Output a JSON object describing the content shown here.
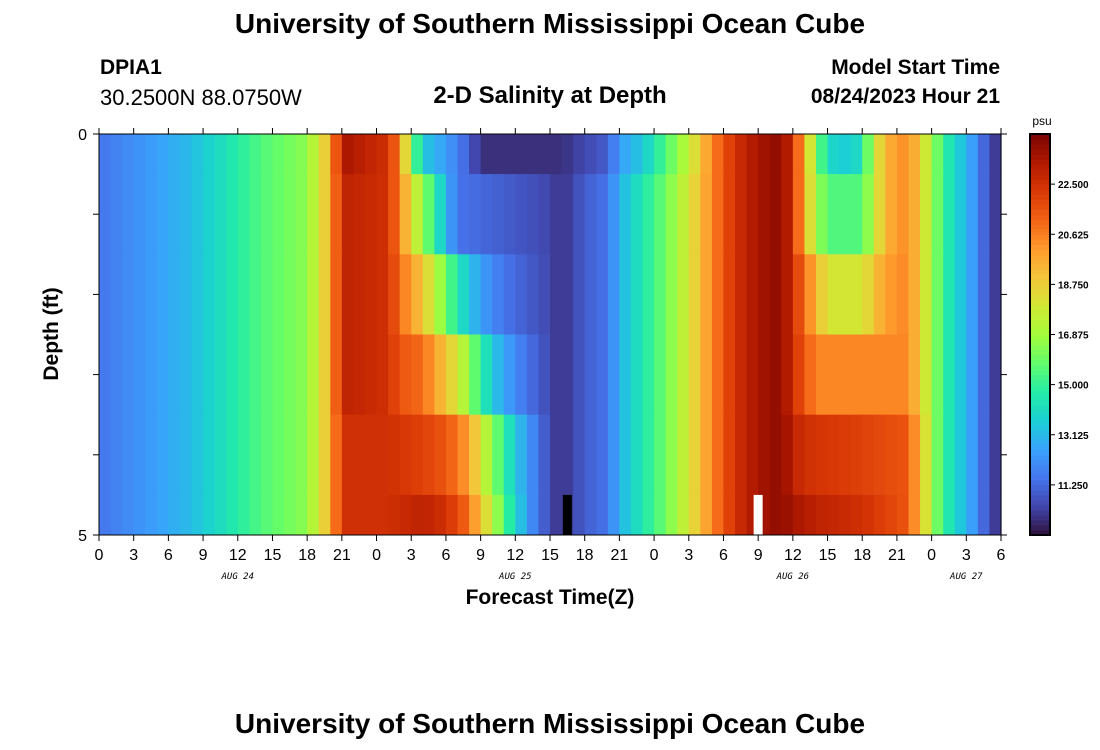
{
  "page": {
    "title": "University of Southern Mississippi Ocean Cube",
    "station_id": "DPIA1",
    "coordinates": "30.2500N  88.0750W",
    "subtitle": "2-D Salinity at Depth",
    "model_start_label": "Model Start Time",
    "model_start_value": "08/24/2023 Hour 21",
    "footer_title": "University of Southern Mississippi Ocean Cube"
  },
  "chart_data": {
    "type": "heatmap",
    "xlabel": "Forecast Time(Z)",
    "ylabel": "Depth (ft)",
    "x_tick_labels": [
      "0",
      "3",
      "6",
      "9",
      "12",
      "15",
      "18",
      "21",
      "0",
      "3",
      "6",
      "9",
      "12",
      "15",
      "18",
      "21",
      "0",
      "3",
      "6",
      "9",
      "12",
      "15",
      "18",
      "21",
      "0",
      "3",
      "6"
    ],
    "date_labels": [
      {
        "label": "AUG 24",
        "hour_index": 12
      },
      {
        "label": "AUG 25",
        "hour_index": 36
      },
      {
        "label": "AUG 26",
        "hour_index": 60
      },
      {
        "label": "AUG 27",
        "hour_index": 75
      }
    ],
    "y_range": [
      0,
      5
    ],
    "y_tick_labels": [
      "0",
      "5"
    ],
    "x_range_hours": [
      0,
      78
    ],
    "colorbar": {
      "unit": "psu",
      "min": 9.375,
      "max": 24.375,
      "ticks": [
        "11.250",
        "13.125",
        "15.000",
        "16.875",
        "18.750",
        "20.625",
        "22.500"
      ],
      "tick_values": [
        11.25,
        13.125,
        15.0,
        16.875,
        18.75,
        20.625,
        22.5
      ]
    },
    "columns_per_row": 78,
    "rows": [
      {
        "depth_top": 0.0,
        "depth_bottom": 0.5,
        "breakpoints": [
          [
            0,
            11.5
          ],
          [
            8,
            13.2
          ],
          [
            14,
            15.5
          ],
          [
            18,
            16.5
          ],
          [
            20,
            19.5
          ],
          [
            21,
            23.5
          ],
          [
            25,
            22.5
          ],
          [
            26,
            20.5
          ],
          [
            27,
            16.5
          ],
          [
            28,
            13.5
          ],
          [
            30,
            12.5
          ],
          [
            32,
            11.0
          ],
          [
            33,
            10.0
          ],
          [
            40,
            10.0
          ],
          [
            44,
            11.0
          ],
          [
            45,
            12.5
          ],
          [
            47,
            13.5
          ],
          [
            49,
            15.5
          ],
          [
            51,
            17.5
          ],
          [
            53,
            20.5
          ],
          [
            55,
            22.5
          ],
          [
            57,
            23.5
          ],
          [
            59,
            24.0
          ],
          [
            60,
            22.5
          ],
          [
            61,
            19.5
          ],
          [
            62,
            16.5
          ],
          [
            63,
            14.0
          ],
          [
            65,
            13.5
          ],
          [
            66,
            14.5
          ],
          [
            67,
            17.5
          ],
          [
            68,
            19.5
          ],
          [
            70,
            20.5
          ],
          [
            72,
            17.0
          ],
          [
            73,
            15.0
          ],
          [
            75,
            13.0
          ],
          [
            76,
            12.0
          ],
          [
            77,
            10.5
          ],
          [
            78,
            10.0
          ]
        ]
      },
      {
        "depth_top": 0.5,
        "depth_bottom": 1.5,
        "breakpoints": [
          [
            0,
            11.5
          ],
          [
            8,
            13.2
          ],
          [
            14,
            15.5
          ],
          [
            18,
            16.5
          ],
          [
            20,
            19.5
          ],
          [
            21,
            23.0
          ],
          [
            25,
            22.5
          ],
          [
            26,
            20.5
          ],
          [
            27,
            18.5
          ],
          [
            28,
            16.5
          ],
          [
            29,
            15.0
          ],
          [
            30,
            13.0
          ],
          [
            31,
            11.5
          ],
          [
            35,
            11.0
          ],
          [
            39,
            10.5
          ],
          [
            40,
            10.0
          ],
          [
            42,
            11.0
          ],
          [
            44,
            11.5
          ],
          [
            45,
            13.0
          ],
          [
            47,
            14.5
          ],
          [
            49,
            16.0
          ],
          [
            51,
            18.0
          ],
          [
            53,
            20.5
          ],
          [
            55,
            22.5
          ],
          [
            57,
            23.5
          ],
          [
            59,
            24.0
          ],
          [
            60,
            22.5
          ],
          [
            61,
            19.5
          ],
          [
            62,
            17.0
          ],
          [
            63,
            15.5
          ],
          [
            66,
            15.5
          ],
          [
            67,
            17.5
          ],
          [
            68,
            19.5
          ],
          [
            70,
            20.5
          ],
          [
            72,
            17.0
          ],
          [
            73,
            15.0
          ],
          [
            75,
            13.0
          ],
          [
            76,
            12.0
          ],
          [
            77,
            10.5
          ],
          [
            78,
            10.0
          ]
        ]
      },
      {
        "depth_top": 1.5,
        "depth_bottom": 2.5,
        "breakpoints": [
          [
            0,
            11.5
          ],
          [
            8,
            13.2
          ],
          [
            14,
            15.5
          ],
          [
            18,
            16.5
          ],
          [
            20,
            19.5
          ],
          [
            21,
            23.0
          ],
          [
            25,
            22.5
          ],
          [
            26,
            21.0
          ],
          [
            27,
            20.0
          ],
          [
            28,
            19.0
          ],
          [
            29,
            17.5
          ],
          [
            30,
            16.0
          ],
          [
            31,
            14.5
          ],
          [
            32,
            13.5
          ],
          [
            33,
            12.5
          ],
          [
            35,
            11.5
          ],
          [
            39,
            10.5
          ],
          [
            40,
            10.0
          ],
          [
            42,
            11.0
          ],
          [
            44,
            11.5
          ],
          [
            45,
            13.0
          ],
          [
            47,
            14.5
          ],
          [
            49,
            16.0
          ],
          [
            51,
            18.0
          ],
          [
            53,
            20.5
          ],
          [
            55,
            22.5
          ],
          [
            57,
            23.5
          ],
          [
            59,
            24.0
          ],
          [
            60,
            22.5
          ],
          [
            61,
            21.0
          ],
          [
            62,
            19.5
          ],
          [
            63,
            18.0
          ],
          [
            66,
            18.0
          ],
          [
            67,
            19.0
          ],
          [
            68,
            20.0
          ],
          [
            70,
            20.5
          ],
          [
            72,
            17.0
          ],
          [
            73,
            15.0
          ],
          [
            75,
            13.0
          ],
          [
            76,
            12.0
          ],
          [
            77,
            10.5
          ],
          [
            78,
            10.0
          ]
        ]
      },
      {
        "depth_top": 2.5,
        "depth_bottom": 3.5,
        "breakpoints": [
          [
            0,
            11.5
          ],
          [
            8,
            13.2
          ],
          [
            14,
            15.5
          ],
          [
            18,
            16.5
          ],
          [
            20,
            19.5
          ],
          [
            21,
            23.0
          ],
          [
            25,
            22.5
          ],
          [
            26,
            21.5
          ],
          [
            28,
            21.0
          ],
          [
            29,
            20.0
          ],
          [
            30,
            19.0
          ],
          [
            31,
            18.0
          ],
          [
            32,
            16.5
          ],
          [
            33,
            15.0
          ],
          [
            34,
            13.5
          ],
          [
            36,
            12.0
          ],
          [
            39,
            10.5
          ],
          [
            40,
            10.0
          ],
          [
            42,
            11.0
          ],
          [
            44,
            11.5
          ],
          [
            45,
            13.0
          ],
          [
            47,
            14.5
          ],
          [
            49,
            16.0
          ],
          [
            51,
            18.0
          ],
          [
            53,
            20.5
          ],
          [
            55,
            22.5
          ],
          [
            57,
            23.5
          ],
          [
            59,
            24.0
          ],
          [
            60,
            22.5
          ],
          [
            61,
            21.5
          ],
          [
            62,
            20.5
          ],
          [
            66,
            20.5
          ],
          [
            68,
            20.5
          ],
          [
            70,
            20.5
          ],
          [
            72,
            17.0
          ],
          [
            73,
            15.0
          ],
          [
            75,
            13.0
          ],
          [
            76,
            12.0
          ],
          [
            77,
            10.5
          ],
          [
            78,
            10.0
          ]
        ]
      },
      {
        "depth_top": 3.5,
        "depth_bottom": 4.5,
        "breakpoints": [
          [
            0,
            11.5
          ],
          [
            8,
            13.2
          ],
          [
            14,
            15.5
          ],
          [
            18,
            16.5
          ],
          [
            20,
            19.5
          ],
          [
            21,
            22.5
          ],
          [
            25,
            22.5
          ],
          [
            28,
            22.0
          ],
          [
            30,
            21.5
          ],
          [
            32,
            20.0
          ],
          [
            33,
            18.0
          ],
          [
            34,
            16.5
          ],
          [
            35,
            15.0
          ],
          [
            36,
            13.5
          ],
          [
            38,
            11.5
          ],
          [
            39,
            10.5
          ],
          [
            40,
            10.0
          ],
          [
            42,
            11.0
          ],
          [
            44,
            11.5
          ],
          [
            45,
            13.0
          ],
          [
            47,
            14.5
          ],
          [
            49,
            16.0
          ],
          [
            51,
            18.0
          ],
          [
            53,
            20.5
          ],
          [
            55,
            22.5
          ],
          [
            57,
            23.5
          ],
          [
            59,
            24.0
          ],
          [
            60,
            23.0
          ],
          [
            61,
            22.5
          ],
          [
            66,
            22.0
          ],
          [
            70,
            21.5
          ],
          [
            72,
            17.0
          ],
          [
            73,
            15.0
          ],
          [
            75,
            13.0
          ],
          [
            76,
            12.0
          ],
          [
            77,
            10.5
          ],
          [
            78,
            10.0
          ]
        ]
      },
      {
        "depth_top": 4.5,
        "depth_bottom": 5.0,
        "breakpoints": [
          [
            0,
            11.5
          ],
          [
            8,
            13.2
          ],
          [
            14,
            15.5
          ],
          [
            18,
            16.5
          ],
          [
            20,
            19.5
          ],
          [
            21,
            22.5
          ],
          [
            25,
            22.5
          ],
          [
            28,
            23.0
          ],
          [
            30,
            22.5
          ],
          [
            32,
            21.0
          ],
          [
            33,
            19.0
          ],
          [
            34,
            17.5
          ],
          [
            35,
            15.5
          ],
          [
            36,
            14.0
          ],
          [
            37,
            12.5
          ],
          [
            38,
            11.5
          ],
          [
            39,
            10.5
          ],
          [
            40,
            10.0
          ],
          [
            42,
            11.0
          ],
          [
            44,
            11.5
          ],
          [
            45,
            13.0
          ],
          [
            47,
            14.5
          ],
          [
            49,
            16.0
          ],
          [
            51,
            18.0
          ],
          [
            53,
            20.5
          ],
          [
            55,
            22.5
          ],
          [
            57,
            23.5
          ],
          [
            59,
            24.0
          ],
          [
            60,
            23.5
          ],
          [
            62,
            23.0
          ],
          [
            66,
            22.5
          ],
          [
            70,
            21.5
          ],
          [
            72,
            17.0
          ],
          [
            73,
            15.0
          ],
          [
            75,
            13.0
          ],
          [
            76,
            12.0
          ],
          [
            77,
            10.5
          ],
          [
            78,
            10.0
          ]
        ]
      }
    ],
    "markers": [
      {
        "hour": 40.5,
        "depth_from": 4.5,
        "depth_to": 5.0,
        "color": "#000000"
      },
      {
        "hour": 57.0,
        "depth_from": 4.5,
        "depth_to": 5.0,
        "color": "#ffffff"
      }
    ],
    "colormap": [
      "#30123b",
      "#4145ab",
      "#4675ed",
      "#39a2fc",
      "#1bcfd4",
      "#24eca6",
      "#61fc6c",
      "#a4fc3b",
      "#d1e834",
      "#f3c63a",
      "#fe9b2d",
      "#f36315",
      "#d93806",
      "#b11901",
      "#7a0402"
    ]
  }
}
